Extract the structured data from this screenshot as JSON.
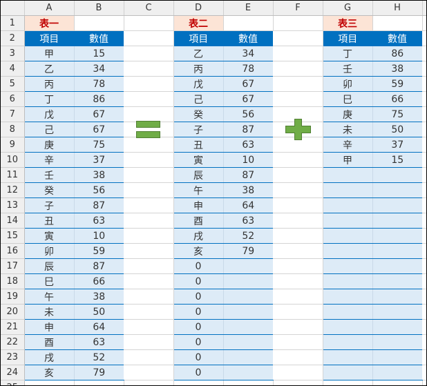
{
  "columns": [
    "A",
    "B",
    "C",
    "D",
    "E",
    "F",
    "G",
    "H"
  ],
  "rows": 24,
  "colors": {
    "header_fill": "#0070c0",
    "body_fill": "#ddebf7",
    "title_fill": "#fce4d6",
    "title_text": "#c00000",
    "symbol_fill": "#70ad47"
  },
  "tables": [
    {
      "title": "表一",
      "headers": [
        "項目",
        "數值"
      ],
      "start_col": 0,
      "fill_rows": 22,
      "rows": [
        [
          "甲",
          "15"
        ],
        [
          "乙",
          "34"
        ],
        [
          "丙",
          "78"
        ],
        [
          "丁",
          "86"
        ],
        [
          "戊",
          "67"
        ],
        [
          "己",
          "67"
        ],
        [
          "庚",
          "75"
        ],
        [
          "辛",
          "37"
        ],
        [
          "壬",
          "38"
        ],
        [
          "癸",
          "56"
        ],
        [
          "子",
          "87"
        ],
        [
          "丑",
          "63"
        ],
        [
          "寅",
          "10"
        ],
        [
          "卯",
          "59"
        ],
        [
          "辰",
          "87"
        ],
        [
          "巳",
          "66"
        ],
        [
          "午",
          "38"
        ],
        [
          "未",
          "50"
        ],
        [
          "申",
          "64"
        ],
        [
          "酉",
          "63"
        ],
        [
          "戌",
          "52"
        ],
        [
          "亥",
          "79"
        ]
      ]
    },
    {
      "title": "表二",
      "headers": [
        "項目",
        "數值"
      ],
      "start_col": 3,
      "fill_rows": 22,
      "rows": [
        [
          "乙",
          "34"
        ],
        [
          "丙",
          "78"
        ],
        [
          "戊",
          "67"
        ],
        [
          "己",
          "67"
        ],
        [
          "癸",
          "56"
        ],
        [
          "子",
          "87"
        ],
        [
          "丑",
          "63"
        ],
        [
          "寅",
          "10"
        ],
        [
          "辰",
          "87"
        ],
        [
          "午",
          "38"
        ],
        [
          "申",
          "64"
        ],
        [
          "酉",
          "63"
        ],
        [
          "戌",
          "52"
        ],
        [
          "亥",
          "79"
        ],
        [
          "0",
          ""
        ],
        [
          "0",
          ""
        ],
        [
          "0",
          ""
        ],
        [
          "0",
          ""
        ],
        [
          "0",
          ""
        ],
        [
          "0",
          ""
        ],
        [
          "0",
          ""
        ],
        [
          "0",
          ""
        ]
      ]
    },
    {
      "title": "表三",
      "headers": [
        "項目",
        "數值"
      ],
      "start_col": 6,
      "fill_rows": 22,
      "rows": [
        [
          "丁",
          "86"
        ],
        [
          "壬",
          "38"
        ],
        [
          "卯",
          "59"
        ],
        [
          "巳",
          "66"
        ],
        [
          "庚",
          "75"
        ],
        [
          "未",
          "50"
        ],
        [
          "辛",
          "37"
        ],
        [
          "甲",
          "15"
        ]
      ]
    }
  ],
  "symbols": [
    {
      "icon": "equals-icon"
    },
    {
      "icon": "plus-icon"
    }
  ]
}
